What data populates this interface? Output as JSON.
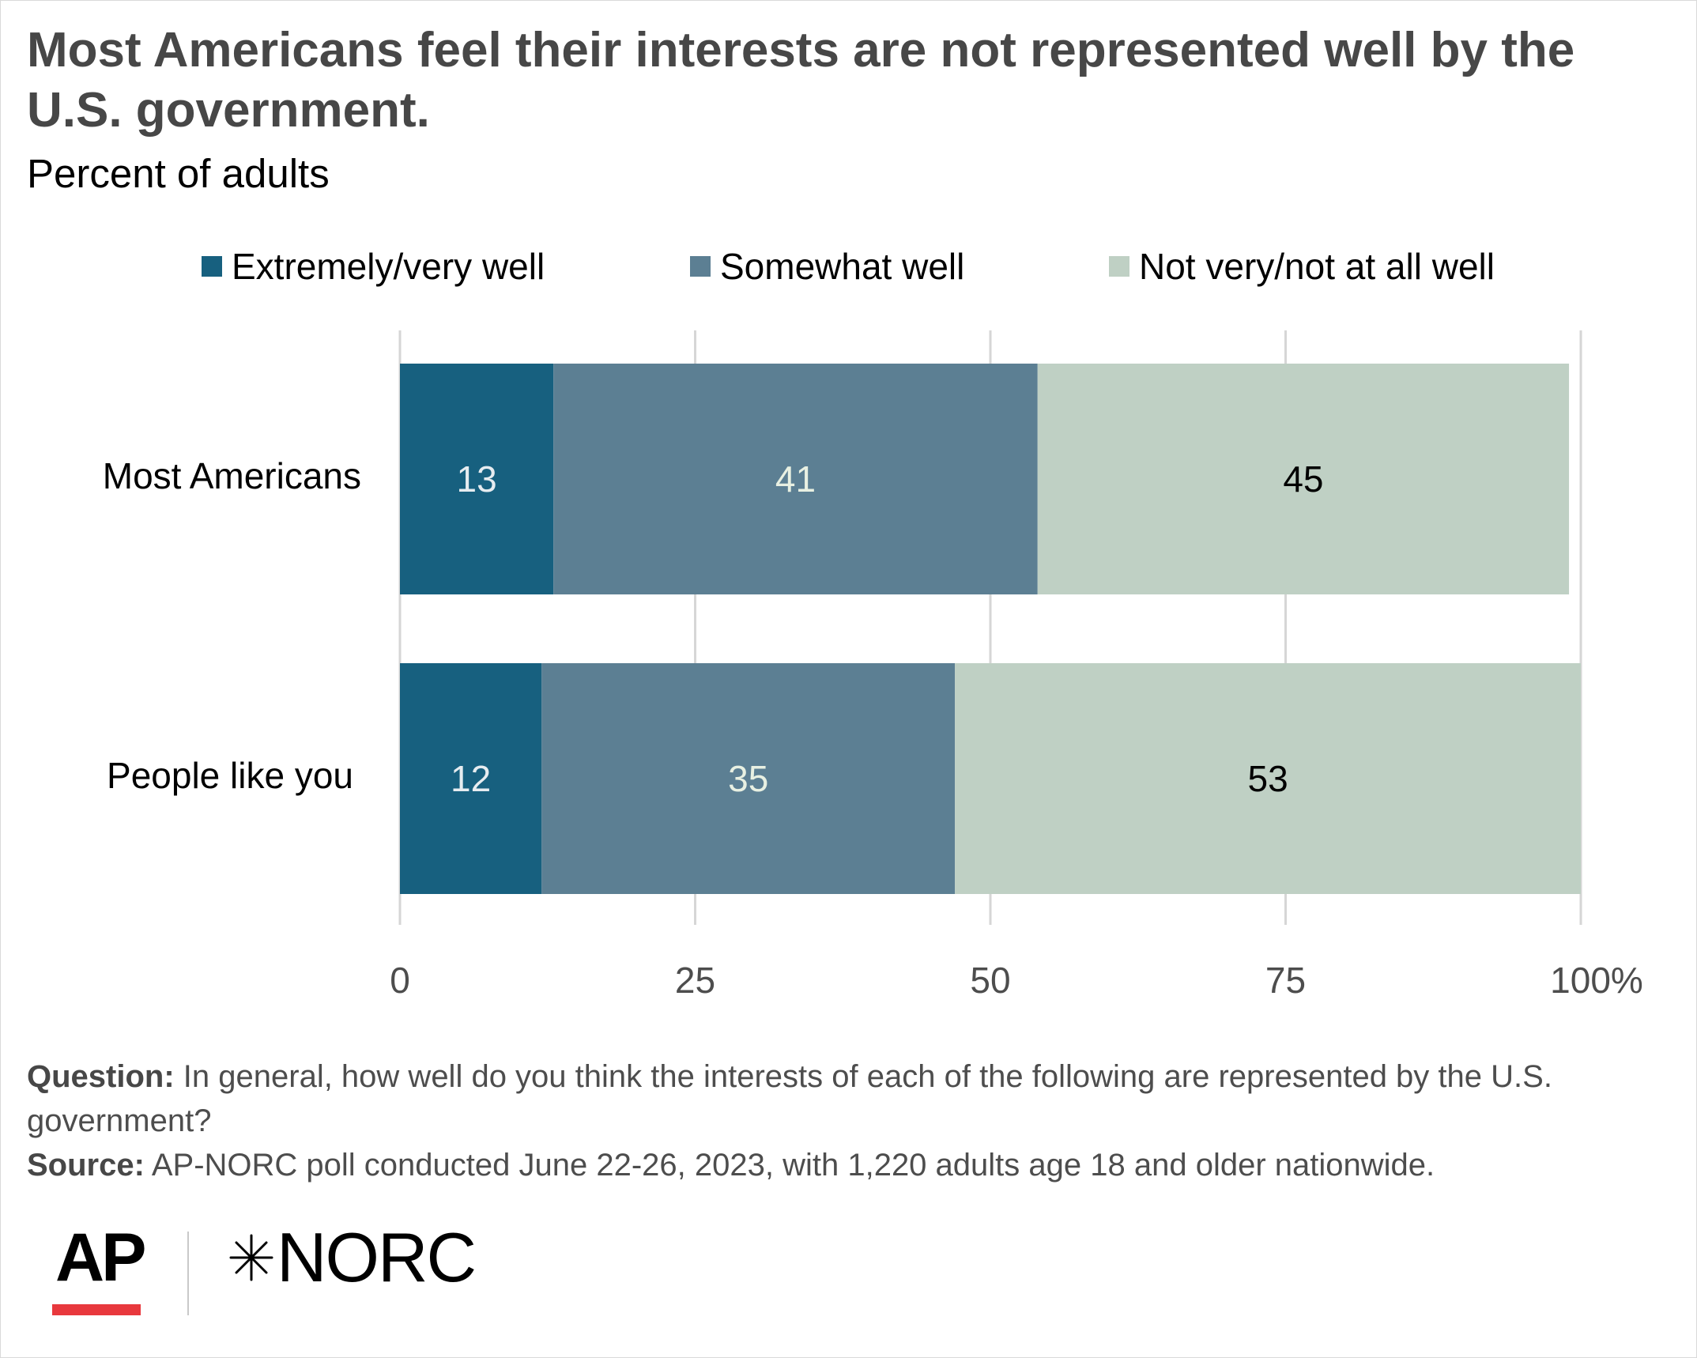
{
  "header": {
    "title": "Most Americans feel their interests are not represented well by the U.S. government.",
    "subtitle": "Percent of adults"
  },
  "legend": {
    "items": [
      {
        "label": "Extremely/very well",
        "color": "#17607f"
      },
      {
        "label": "Somewhat well",
        "color": "#5c7f93"
      },
      {
        "label": "Not very/not at all well",
        "color": "#bfd0c4"
      }
    ]
  },
  "chart_data": {
    "type": "bar",
    "orientation": "horizontal",
    "stacked": true,
    "categories": [
      "Most Americans",
      "People like you"
    ],
    "series": [
      {
        "name": "Extremely/very well",
        "values": [
          13,
          12
        ],
        "color": "#17607f",
        "label_color": "#e6ecf0"
      },
      {
        "name": "Somewhat well",
        "values": [
          41,
          35
        ],
        "color": "#5c7f93",
        "label_color": "#e8f0e2"
      },
      {
        "name": "Not very/not at all well",
        "values": [
          45,
          53
        ],
        "color": "#bfd0c4",
        "label_color": "#000000"
      }
    ],
    "xlim": [
      0,
      100
    ],
    "x_ticks": [
      "0",
      "25",
      "50",
      "75",
      "100%"
    ],
    "x_tick_values": [
      0,
      25,
      50,
      75,
      100
    ],
    "grid": true,
    "legend_position": "top"
  },
  "footer": {
    "question_label": "Question:",
    "question_text": "In general, how well do you think the interests of each of the following are represented by the U.S. government?",
    "source_label": "Source:",
    "source_text": "AP-NORC poll conducted June 22-26, 2023, with 1,220 adults age 18 and older nationwide."
  },
  "logos": {
    "ap": "AP",
    "norc": "NORC",
    "ap_accent": "#e8383d"
  }
}
